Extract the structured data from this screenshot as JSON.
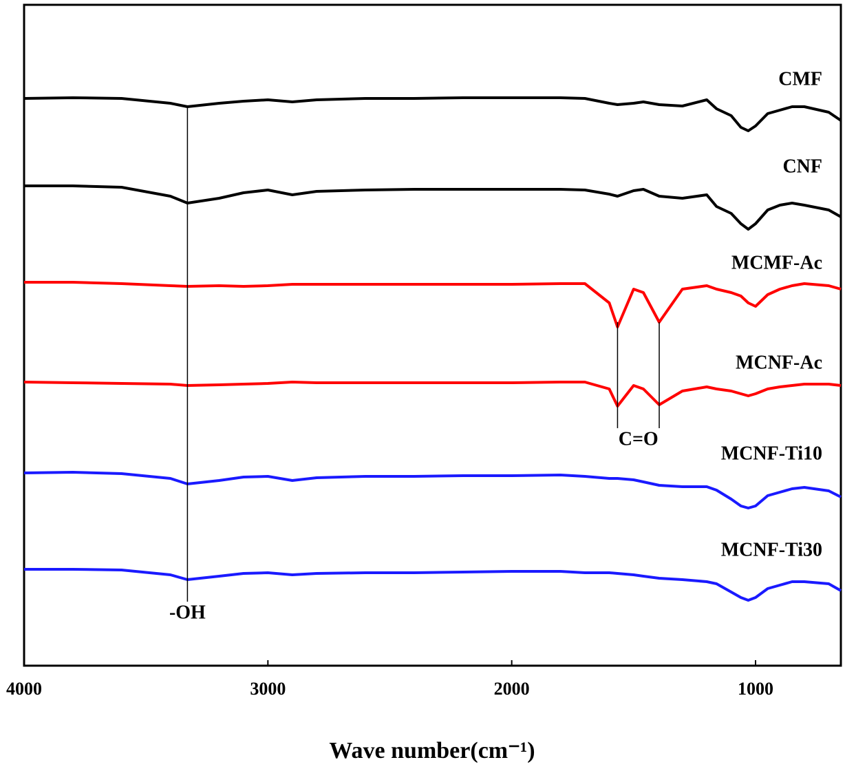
{
  "chart_data": {
    "type": "line",
    "x_label": "Wave number(cm⁻¹)",
    "xlim": [
      4000,
      650
    ],
    "xticks": [
      4000,
      3000,
      2000,
      1000
    ],
    "ylim": [
      0,
      960
    ],
    "x": [
      4000,
      3800,
      3600,
      3400,
      3330,
      3200,
      3100,
      3000,
      2900,
      2800,
      2600,
      2400,
      2200,
      2000,
      1800,
      1700,
      1600,
      1566,
      1500,
      1460,
      1395,
      1300,
      1200,
      1160,
      1100,
      1060,
      1030,
      1000,
      950,
      900,
      850,
      800,
      700,
      650
    ],
    "series": [
      {
        "name": "CMF",
        "color": "#000000",
        "values": [
          824,
          825,
          824,
          817,
          812,
          817,
          820,
          822,
          819,
          822,
          824,
          824,
          825,
          825,
          825,
          824,
          817,
          815,
          817,
          819,
          815,
          813,
          822,
          809,
          799,
          782,
          777,
          784,
          802,
          807,
          812,
          812,
          804,
          792
        ]
      },
      {
        "name": "CNF",
        "color": "#000000",
        "values": [
          697,
          697,
          695,
          682,
          672,
          679,
          687,
          691,
          684,
          689,
          691,
          692,
          692,
          692,
          692,
          691,
          685,
          682,
          690,
          692,
          682,
          679,
          684,
          667,
          657,
          642,
          634,
          642,
          662,
          669,
          672,
          669,
          662,
          652
        ]
      },
      {
        "name": "MCMF-Ac",
        "color": "#ff0000",
        "values": [
          557,
          557,
          555,
          552,
          551,
          552,
          551,
          552,
          554,
          554,
          554,
          554,
          554,
          554,
          555,
          555,
          527,
          492,
          547,
          542,
          499,
          547,
          552,
          547,
          542,
          537,
          527,
          522,
          539,
          547,
          552,
          555,
          552,
          547
        ]
      },
      {
        "name": "MCNF-Ac",
        "color": "#ff0000",
        "values": [
          412,
          411,
          410,
          409,
          407,
          408,
          409,
          410,
          412,
          411,
          411,
          411,
          411,
          411,
          412,
          412,
          402,
          377,
          407,
          402,
          379,
          399,
          405,
          402,
          399,
          395,
          392,
          395,
          402,
          405,
          407,
          409,
          409,
          407
        ]
      },
      {
        "name": "MCNF-Ti10",
        "color": "#1a1aff",
        "values": [
          280,
          281,
          279,
          272,
          264,
          269,
          274,
          275,
          269,
          273,
          275,
          275,
          276,
          276,
          277,
          275,
          272,
          272,
          270,
          267,
          262,
          260,
          260,
          255,
          242,
          232,
          229,
          232,
          247,
          252,
          257,
          259,
          254,
          245
        ]
      },
      {
        "name": "MCNF-Ti30",
        "color": "#1a1aff",
        "values": [
          140,
          140,
          139,
          132,
          125,
          130,
          134,
          135,
          132,
          134,
          135,
          135,
          136,
          137,
          137,
          135,
          135,
          134,
          132,
          130,
          127,
          125,
          122,
          119,
          107,
          99,
          95,
          99,
          112,
          117,
          122,
          122,
          119,
          109
        ]
      }
    ],
    "annotations": [
      {
        "text": "-OH",
        "x": [
          3330
        ]
      },
      {
        "text": "C=O",
        "x": [
          1566,
          1395
        ]
      }
    ]
  }
}
